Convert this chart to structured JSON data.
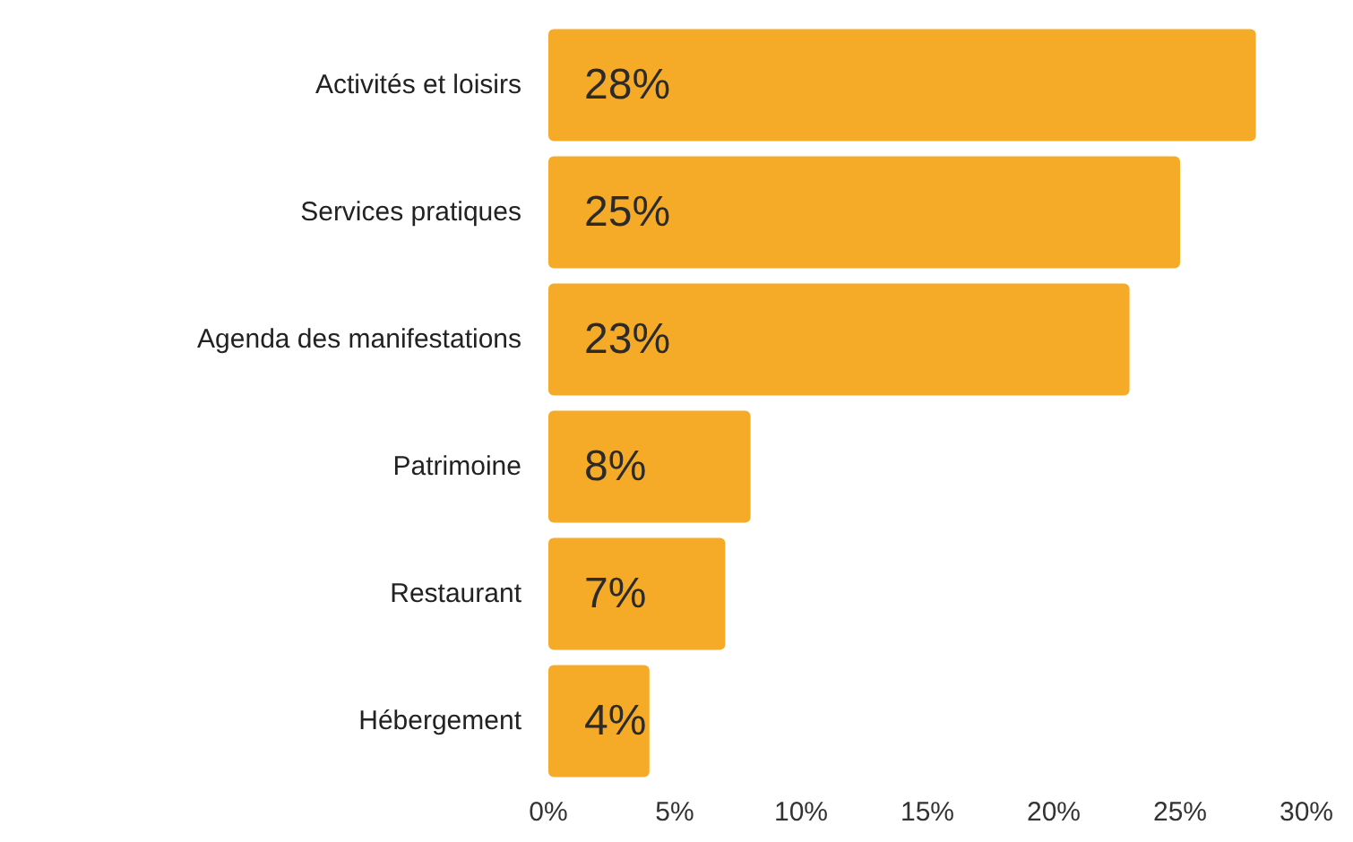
{
  "chart_data": {
    "type": "bar",
    "orientation": "horizontal",
    "categories": [
      "Activités et loisirs",
      "Services pratiques",
      "Agenda des manifestations",
      "Patrimoine",
      "Restaurant",
      "Hébergement"
    ],
    "values": [
      28,
      25,
      23,
      8,
      7,
      4
    ],
    "value_labels": [
      "28%",
      "25%",
      "23%",
      "8%",
      "7%",
      "4%"
    ],
    "color": "#f5ab27",
    "xlim": [
      0,
      30
    ],
    "xticks": [
      {
        "value": 0,
        "label": "0%"
      },
      {
        "value": 5,
        "label": "5%"
      },
      {
        "value": 10,
        "label": "10%"
      },
      {
        "value": 15,
        "label": "15%"
      },
      {
        "value": 20,
        "label": "20%"
      },
      {
        "value": 25,
        "label": "25%"
      },
      {
        "value": 30,
        "label": "30%"
      }
    ],
    "grid": false
  }
}
